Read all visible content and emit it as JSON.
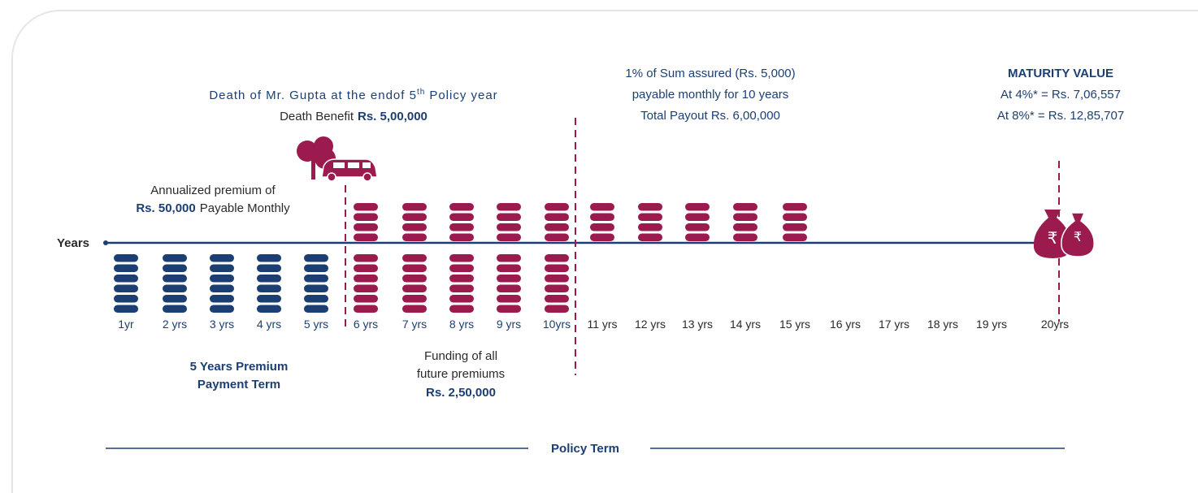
{
  "death_note": {
    "line1_pre": "Death of Mr. Gupta at the endof 5",
    "line1_sup": "th",
    "line1_post": "Policy year",
    "label": "Death Benefit",
    "amount": "Rs. 5,00,000"
  },
  "premium_note": {
    "line1": "Annualized premium of",
    "amount": "Rs. 50,000",
    "rest": "Payable Monthly"
  },
  "axis_label": "Years",
  "years": [
    "1yr",
    "2 yrs",
    "3 yrs",
    "4 yrs",
    "5 yrs",
    "6 yrs",
    "7 yrs",
    "8 yrs",
    "9 yrs",
    "10yrs",
    "11 yrs",
    "12 yrs",
    "13 yrs",
    "14 yrs",
    "15 yrs",
    "16 yrs",
    "17 yrs",
    "18 yrs",
    "19 yrs",
    "20yrs"
  ],
  "premium_term": [
    "5 Years Premium",
    "Payment Term"
  ],
  "funding": {
    "lines": [
      "Funding of all",
      "future premiums"
    ],
    "amount": "Rs. 2,50,000"
  },
  "payout": [
    "1% of Sum assured (Rs. 5,000)",
    "payable monthly for 10 years",
    "Total Payout Rs. 6,00,000"
  ],
  "maturity": {
    "title": "MATURITY VALUE",
    "lines": [
      "At 4%* = Rs. 7,06,557",
      "At 8%* = Rs. 12,85,707"
    ]
  },
  "currency_symbol": "₹",
  "policy_term": "Policy Term"
}
